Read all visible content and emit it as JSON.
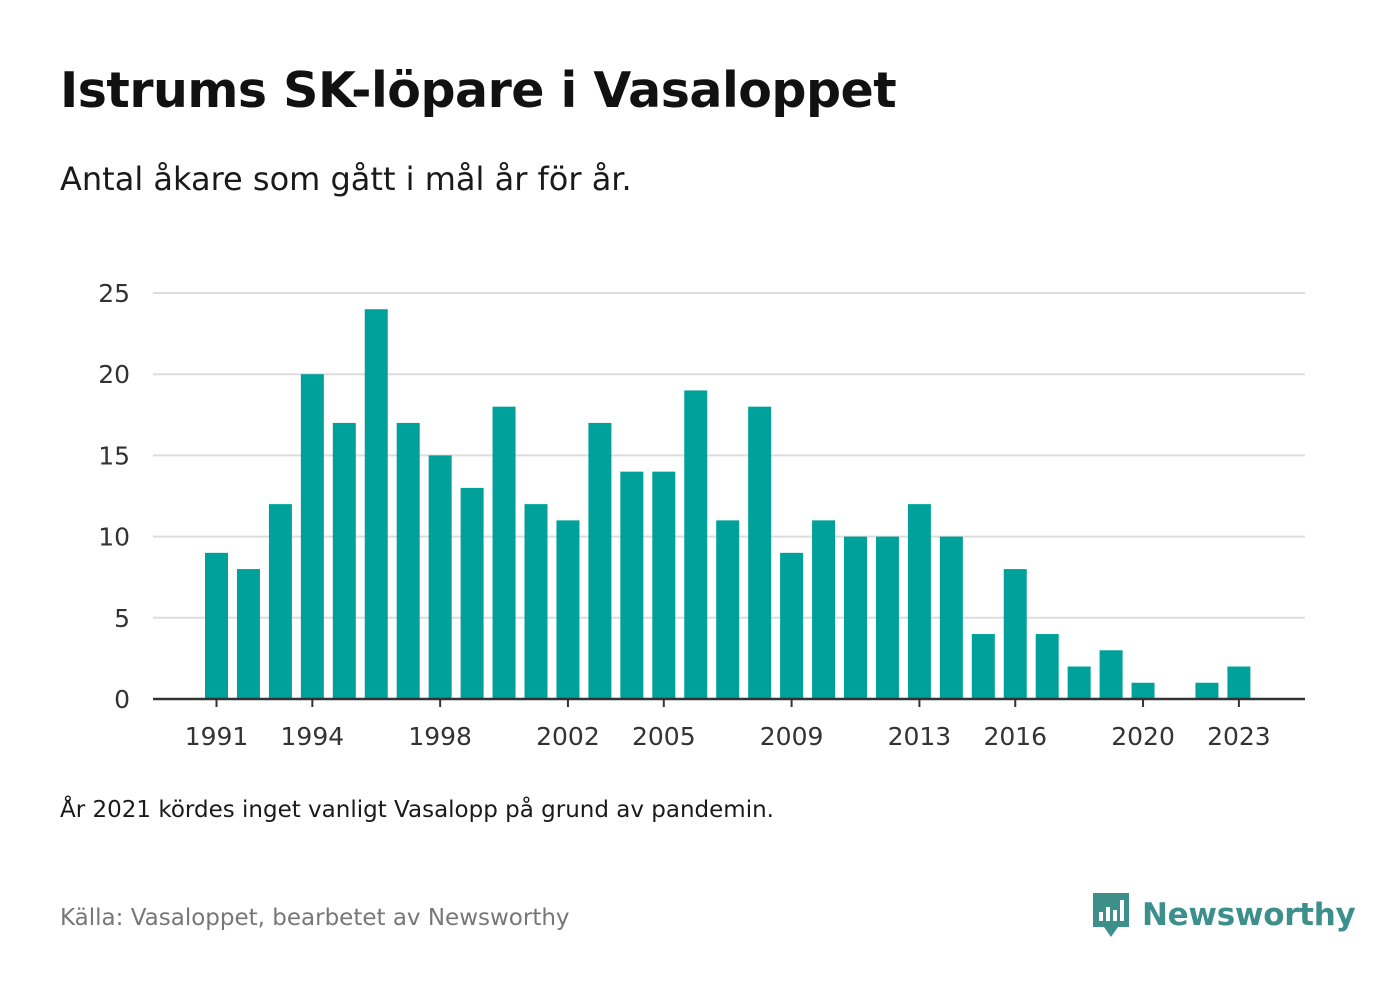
{
  "title": "Istrums SK-löpare i Vasaloppet",
  "subtitle": "Antal åkare som gått i mål år för år.",
  "note": "År 2021 kördes inget vanligt Vasalopp på grund av pandemin.",
  "source": "Källa: Vasaloppet, bearbetet av Newsworthy",
  "brand": {
    "name": "Newsworthy",
    "icon": "newsworthy-logo-icon",
    "color": "#3d8f8b"
  },
  "colors": {
    "bar": "#00a19a",
    "grid": "#dddddd",
    "axis": "#333333",
    "tick_text": "#333333"
  },
  "chart_data": {
    "type": "bar",
    "categories": [
      "1991",
      "1992",
      "1993",
      "1994",
      "1995",
      "1996",
      "1997",
      "1998",
      "1999",
      "2000",
      "2001",
      "2002",
      "2003",
      "2004",
      "2005",
      "2006",
      "2007",
      "2008",
      "2009",
      "2010",
      "2011",
      "2012",
      "2013",
      "2014",
      "2015",
      "2016",
      "2017",
      "2018",
      "2019",
      "2020",
      "2021",
      "2022",
      "2023"
    ],
    "values": [
      9,
      8,
      12,
      20,
      17,
      24,
      17,
      15,
      13,
      18,
      12,
      11,
      17,
      14,
      14,
      19,
      11,
      18,
      9,
      11,
      10,
      10,
      12,
      10,
      4,
      8,
      4,
      2,
      3,
      1,
      0,
      1,
      2
    ],
    "x_tick_labels": [
      "1991",
      "1994",
      "1998",
      "2002",
      "2005",
      "2009",
      "2013",
      "2016",
      "2020",
      "2023"
    ],
    "y_ticks": [
      "0",
      "5",
      "10",
      "15",
      "20",
      "25"
    ],
    "ylim": [
      0,
      25
    ],
    "xlabel": "",
    "ylabel": "",
    "grid": true,
    "legend": "none"
  }
}
